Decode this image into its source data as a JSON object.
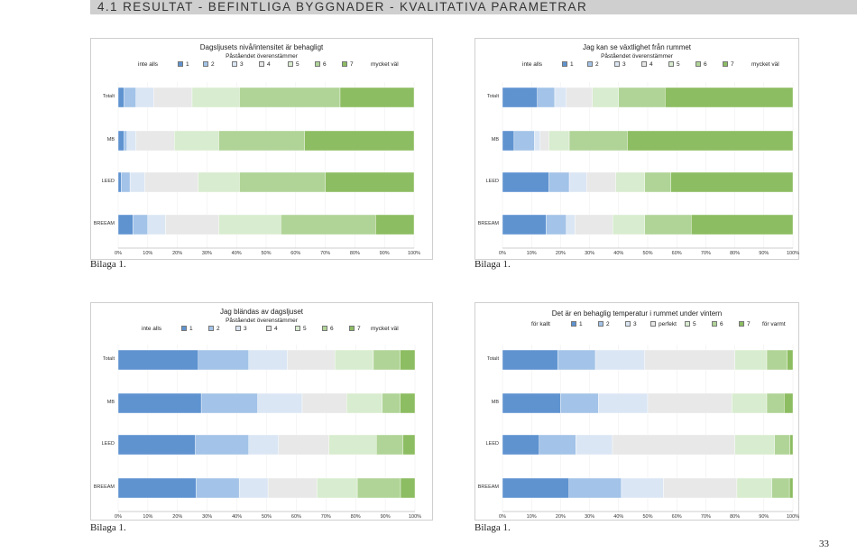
{
  "page": {
    "heading": "4.1 RESULTAT - BEFINTLIGA BYGGNADER - KVALITATIVA PARAMETRAR",
    "page_number": "33"
  },
  "colors": [
    "#5f93d0",
    "#a3c3e8",
    "#dbe6f4",
    "#e8e8e8",
    "#d8eccf",
    "#b0d497",
    "#8dbd62"
  ],
  "chart_data": [
    {
      "type": "bar",
      "stacked": true,
      "orientation": "horizontal",
      "title": "Dagsljusets nivå/intensitet är behagligt",
      "subtitle": "Påståendet överenstämmer",
      "legend_labels": [
        "inte alls",
        "1",
        "2",
        "3",
        "4",
        "5",
        "6",
        "7",
        "mycket väl"
      ],
      "categories": [
        "Totalt",
        "MB",
        "LEED",
        "BREEAM"
      ],
      "series": [
        {
          "name": "1",
          "values": [
            2,
            2,
            1,
            5
          ]
        },
        {
          "name": "2",
          "values": [
            4,
            1,
            3,
            5
          ]
        },
        {
          "name": "3",
          "values": [
            6,
            3,
            5,
            6
          ]
        },
        {
          "name": "4",
          "values": [
            13,
            13,
            18,
            18
          ]
        },
        {
          "name": "5",
          "values": [
            16,
            15,
            14,
            21
          ]
        },
        {
          "name": "6",
          "values": [
            34,
            29,
            29,
            32
          ]
        },
        {
          "name": "7",
          "values": [
            25,
            37,
            30,
            13
          ]
        }
      ],
      "x_ticks": [
        "0%",
        "10%",
        "20%",
        "30%",
        "40%",
        "50%",
        "60%",
        "70%",
        "80%",
        "90%",
        "100%"
      ],
      "caption": "Bilaga 1."
    },
    {
      "type": "bar",
      "stacked": true,
      "orientation": "horizontal",
      "title": "Jag kan se växtlighet från rummet",
      "subtitle": "Påståendet överenstämmer",
      "legend_labels": [
        "inte alls",
        "1",
        "2",
        "3",
        "4",
        "5",
        "6",
        "7",
        "mycket väl"
      ],
      "categories": [
        "Totalt",
        "MB",
        "LEED",
        "BREEAM"
      ],
      "series": [
        {
          "name": "1",
          "values": [
            12,
            4,
            16,
            15
          ]
        },
        {
          "name": "2",
          "values": [
            6,
            7,
            7,
            7
          ]
        },
        {
          "name": "3",
          "values": [
            4,
            2,
            6,
            3
          ]
        },
        {
          "name": "4",
          "values": [
            9,
            3,
            10,
            13
          ]
        },
        {
          "name": "5",
          "values": [
            9,
            7,
            10,
            11
          ]
        },
        {
          "name": "6",
          "values": [
            16,
            20,
            9,
            16
          ]
        },
        {
          "name": "7",
          "values": [
            44,
            57,
            42,
            35
          ]
        }
      ],
      "x_ticks": [
        "0%",
        "10%",
        "20%",
        "30%",
        "40%",
        "50%",
        "60%",
        "70%",
        "80%",
        "90%",
        "100%"
      ],
      "caption": "Bilaga 1."
    },
    {
      "type": "bar",
      "stacked": true,
      "orientation": "horizontal",
      "title": "Jag bländas av dagsljuset",
      "subtitle": "Påståendet överenstämmer",
      "legend_labels": [
        "inte alls",
        "1",
        "2",
        "3",
        "4",
        "5",
        "6",
        "7",
        "mycket väl"
      ],
      "categories": [
        "Totalt",
        "MB",
        "LEED",
        "BREEAM"
      ],
      "series": [
        {
          "name": "1",
          "values": [
            27,
            28,
            26,
            27
          ]
        },
        {
          "name": "2",
          "values": [
            17,
            19,
            18,
            15
          ]
        },
        {
          "name": "3",
          "values": [
            13,
            15,
            10,
            10
          ]
        },
        {
          "name": "4",
          "values": [
            16,
            15,
            17,
            17
          ]
        },
        {
          "name": "5",
          "values": [
            13,
            12,
            16,
            14
          ]
        },
        {
          "name": "6",
          "values": [
            9,
            6,
            9,
            15
          ]
        },
        {
          "name": "7",
          "values": [
            5,
            5,
            4,
            5
          ]
        }
      ],
      "x_ticks": [
        "0%",
        "10%",
        "20%",
        "30%",
        "40%",
        "50%",
        "60%",
        "70%",
        "80%",
        "90%",
        "100%"
      ],
      "caption": "Bilaga 1."
    },
    {
      "type": "bar",
      "stacked": true,
      "orientation": "horizontal",
      "title": "Det är en behaglig temperatur i rummet under vintern",
      "subtitle": "",
      "legend_labels": [
        "för kallt",
        "1",
        "2",
        "3",
        "perfekt",
        "5",
        "6",
        "7",
        "för varmt"
      ],
      "categories": [
        "Totalt",
        "MB",
        "LEED",
        "BREEAM"
      ],
      "series": [
        {
          "name": "1",
          "values": [
            19,
            20,
            12,
            19
          ]
        },
        {
          "name": "2",
          "values": [
            13,
            13,
            12,
            15
          ]
        },
        {
          "name": "3",
          "values": [
            17,
            17,
            12,
            12
          ]
        },
        {
          "name": "perfekt",
          "values": [
            31,
            29,
            40,
            21
          ]
        },
        {
          "name": "5",
          "values": [
            11,
            12,
            13,
            10
          ]
        },
        {
          "name": "6",
          "values": [
            7,
            6,
            5,
            5
          ]
        },
        {
          "name": "7",
          "values": [
            2,
            3,
            1,
            1
          ]
        }
      ],
      "x_ticks": [
        "0%",
        "10%",
        "20%",
        "30%",
        "40%",
        "50%",
        "60%",
        "70%",
        "80%",
        "90%",
        "100%"
      ],
      "caption": "Bilaga 1."
    }
  ]
}
